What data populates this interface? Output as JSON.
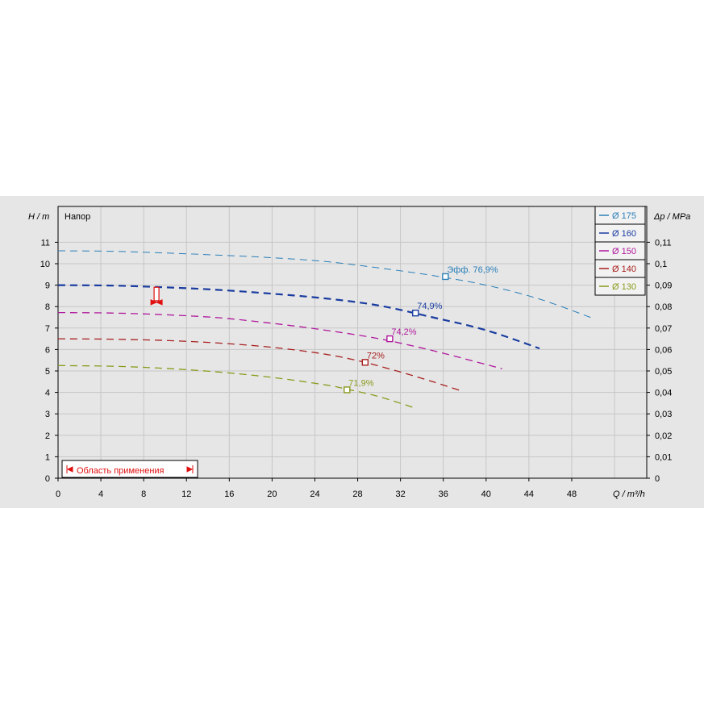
{
  "chart_data": {
    "type": "line",
    "title": "Напор",
    "ylabel": "H / m",
    "ylabel_right": "Δp / MPa",
    "xlabel": "Q / m³/h",
    "xlim": [
      0,
      55
    ],
    "ylim": [
      0,
      12
    ],
    "xticks": [
      "0",
      "4",
      "8",
      "12",
      "16",
      "20",
      "24",
      "28",
      "32",
      "36",
      "40",
      "44",
      "48"
    ],
    "yticks": [
      "0",
      "1",
      "2",
      "3",
      "4",
      "5",
      "6",
      "7",
      "8",
      "9",
      "10",
      "11"
    ],
    "yticks_right": [
      "0",
      "0,01",
      "0,02",
      "0,03",
      "0,04",
      "0,05",
      "0,06",
      "0,07",
      "0,08",
      "0,09",
      "0,1",
      "0,11"
    ],
    "grid": true,
    "legend_position": "top-right",
    "range_label": "Область применения",
    "series": [
      {
        "name": "Ø 175",
        "color": "#2a7fb8",
        "width": 1.0,
        "dash": "9 6",
        "x": [
          0,
          5,
          10,
          15,
          20,
          25,
          30,
          35,
          40,
          45,
          50
        ],
        "y": [
          10.6,
          10.58,
          10.5,
          10.4,
          10.28,
          10.1,
          9.8,
          9.45,
          9.0,
          8.35,
          7.45
        ],
        "marker": {
          "x": 36.2,
          "y": 9.4,
          "label": "Эфф.  76,9%"
        }
      },
      {
        "name": "Ø 160",
        "color": "#1a3ca0",
        "width": 2.2,
        "dash": "9 6",
        "x": [
          0,
          5,
          10,
          15,
          20,
          25,
          30,
          35,
          40,
          45
        ],
        "y": [
          9.0,
          8.98,
          8.9,
          8.78,
          8.6,
          8.38,
          8.05,
          7.5,
          6.9,
          6.05
        ],
        "marker": {
          "x": 33.4,
          "y": 7.7,
          "label": "74,9%"
        }
      },
      {
        "name": "Ø 150",
        "color": "#b0189c",
        "width": 1.3,
        "dash": "9 6",
        "x": [
          0,
          5,
          10,
          15,
          20,
          25,
          30,
          35,
          40,
          41.5
        ],
        "y": [
          7.72,
          7.7,
          7.62,
          7.48,
          7.22,
          6.9,
          6.5,
          5.95,
          5.3,
          5.1
        ],
        "marker": {
          "x": 31.0,
          "y": 6.5,
          "label": "74,2%"
        }
      },
      {
        "name": "Ø 140",
        "color": "#a82020",
        "width": 1.3,
        "dash": "9 6",
        "x": [
          0,
          5,
          10,
          15,
          20,
          25,
          28.5,
          32,
          35,
          37.5
        ],
        "y": [
          6.5,
          6.48,
          6.42,
          6.3,
          6.1,
          5.78,
          5.42,
          4.95,
          4.5,
          4.1
        ],
        "marker": {
          "x": 28.7,
          "y": 5.4,
          "label": "72%"
        }
      },
      {
        "name": "Ø 130",
        "color": "#8a9a1c",
        "width": 1.3,
        "dash": "9 6",
        "x": [
          0,
          5,
          10,
          15,
          20,
          25,
          27,
          30,
          33.5
        ],
        "y": [
          5.25,
          5.22,
          5.12,
          4.95,
          4.7,
          4.35,
          4.15,
          3.8,
          3.25
        ],
        "marker": {
          "x": 27.0,
          "y": 4.12,
          "label": "71,9%"
        }
      }
    ],
    "indicator": {
      "x": 9.2,
      "y_top": 8.9,
      "y_bottom": 8.2,
      "color": "#e01010"
    }
  }
}
